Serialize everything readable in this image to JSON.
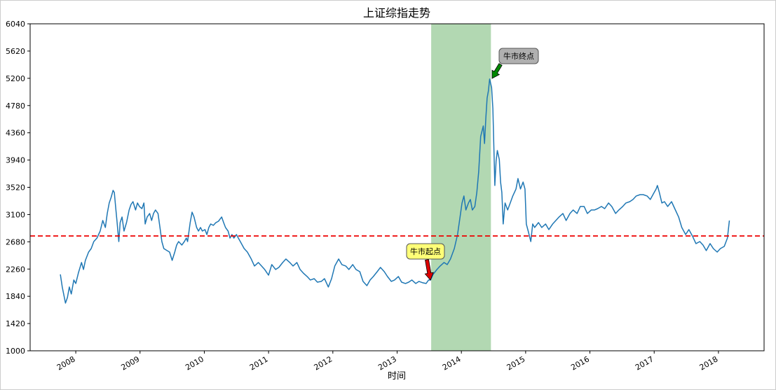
{
  "chart_data": {
    "type": "line",
    "title": "上证综指走势",
    "x_label": "时间",
    "color": "#1f77b4",
    "x": [
      2007.76,
      2007.79,
      2007.84,
      2007.87,
      2007.9,
      2007.93,
      2007.97,
      2008.0,
      2008.04,
      2008.09,
      2008.12,
      2008.15,
      2008.2,
      2008.24,
      2008.28,
      2008.33,
      2008.38,
      2008.42,
      2008.46,
      2008.49,
      2008.52,
      2008.55,
      2008.58,
      2008.6,
      2008.62,
      2008.64,
      2008.67,
      2008.69,
      2008.72,
      2008.75,
      2008.79,
      2008.83,
      2008.86,
      2008.89,
      2008.93,
      2008.96,
      2008.99,
      2009.03,
      2009.06,
      2009.08,
      2009.11,
      2009.15,
      2009.18,
      2009.21,
      2009.24,
      2009.28,
      2009.31,
      2009.34,
      2009.37,
      2009.42,
      2009.46,
      2009.5,
      2009.54,
      2009.57,
      2009.6,
      2009.65,
      2009.69,
      2009.72,
      2009.74,
      2009.78,
      2009.81,
      2009.84,
      2009.88,
      2009.91,
      2009.94,
      2009.97,
      2010.01,
      2010.04,
      2010.07,
      2010.1,
      2010.14,
      2010.18,
      2010.22,
      2010.27,
      2010.3,
      2010.33,
      2010.37,
      2010.4,
      2010.43,
      2010.46,
      2010.5,
      2010.53,
      2010.56,
      2010.62,
      2010.67,
      2010.73,
      2010.78,
      2010.84,
      2010.89,
      2010.94,
      2011.0,
      2011.05,
      2011.11,
      2011.16,
      2011.22,
      2011.27,
      2011.33,
      2011.38,
      2011.44,
      2011.49,
      2011.54,
      2011.6,
      2011.65,
      2011.71,
      2011.76,
      2011.82,
      2011.87,
      2011.93,
      2011.98,
      2012.03,
      2012.09,
      2012.14,
      2012.2,
      2012.25,
      2012.31,
      2012.36,
      2012.42,
      2012.47,
      2012.53,
      2012.58,
      2012.63,
      2012.69,
      2012.74,
      2012.8,
      2012.85,
      2012.91,
      2012.96,
      2013.02,
      2013.07,
      2013.13,
      2013.18,
      2013.23,
      2013.29,
      2013.34,
      2013.4,
      2013.45,
      2013.49,
      2013.52,
      2013.56,
      2013.62,
      2013.67,
      2013.73,
      2013.78,
      2013.83,
      2013.89,
      2013.94,
      2013.98,
      2014.01,
      2014.04,
      2014.07,
      2014.11,
      2014.14,
      2014.17,
      2014.21,
      2014.24,
      2014.27,
      2014.3,
      2014.34,
      2014.36,
      2014.38,
      2014.4,
      2014.42,
      2014.44,
      2014.47,
      2014.49,
      2014.51,
      2014.52,
      2014.54,
      2014.56,
      2014.59,
      2014.61,
      2014.63,
      2014.65,
      2014.68,
      2014.72,
      2014.76,
      2014.8,
      2014.85,
      2014.88,
      2014.92,
      2014.96,
      2014.99,
      2015.01,
      2015.04,
      2015.08,
      2015.11,
      2015.14,
      2015.2,
      2015.25,
      2015.31,
      2015.36,
      2015.42,
      2015.47,
      2015.52,
      2015.58,
      2015.63,
      2015.69,
      2015.74,
      2015.8,
      2015.85,
      2015.91,
      2015.96,
      2016.02,
      2016.07,
      2016.12,
      2016.18,
      2016.23,
      2016.29,
      2016.34,
      2016.4,
      2016.45,
      2016.51,
      2016.56,
      2016.62,
      2016.67,
      2016.72,
      2016.78,
      2016.83,
      2016.89,
      2016.94,
      2017.0,
      2017.03,
      2017.05,
      2017.08,
      2017.12,
      2017.16,
      2017.21,
      2017.27,
      2017.32,
      2017.38,
      2017.43,
      2017.49,
      2017.54,
      2017.6,
      2017.65,
      2017.71,
      2017.76,
      2017.81,
      2017.87,
      2017.92,
      2017.98,
      2018.03,
      2018.09,
      2018.14,
      2018.17
    ],
    "values": [
      2177,
      1983,
      1735,
      1821,
      1983,
      1875,
      2091,
      2037,
      2199,
      2361,
      2253,
      2393,
      2522,
      2576,
      2684,
      2738,
      2846,
      3008,
      2900,
      3116,
      3278,
      3364,
      3472,
      3440,
      3224,
      3008,
      2684,
      2976,
      3062,
      2846,
      2976,
      3170,
      3256,
      3299,
      3170,
      3278,
      3224,
      3191,
      3278,
      2954,
      3062,
      3116,
      3008,
      3116,
      3170,
      3116,
      2900,
      2684,
      2576,
      2544,
      2522,
      2393,
      2522,
      2630,
      2684,
      2630,
      2684,
      2738,
      2684,
      2976,
      3137,
      3062,
      2900,
      2846,
      2900,
      2846,
      2868,
      2792,
      2900,
      2954,
      2933,
      2976,
      2997,
      3062,
      2976,
      2900,
      2846,
      2738,
      2792,
      2738,
      2792,
      2738,
      2684,
      2576,
      2522,
      2415,
      2307,
      2361,
      2307,
      2253,
      2166,
      2328,
      2253,
      2285,
      2361,
      2415,
      2361,
      2307,
      2361,
      2253,
      2199,
      2145,
      2091,
      2112,
      2058,
      2069,
      2112,
      1983,
      2112,
      2307,
      2415,
      2328,
      2307,
      2253,
      2328,
      2253,
      2220,
      2069,
      2004,
      2091,
      2145,
      2220,
      2285,
      2220,
      2145,
      2069,
      2091,
      2145,
      2058,
      2037,
      2058,
      2091,
      2037,
      2069,
      2048,
      2037,
      2091,
      2091,
      2177,
      2253,
      2307,
      2361,
      2328,
      2415,
      2576,
      2792,
      3062,
      3278,
      3386,
      3170,
      3278,
      3332,
      3170,
      3224,
      3440,
      3763,
      4303,
      4465,
      4195,
      4573,
      4896,
      5004,
      5188,
      5058,
      4734,
      3979,
      3548,
      3925,
      4087,
      3947,
      3601,
      3440,
      2954,
      3278,
      3170,
      3278,
      3386,
      3494,
      3655,
      3494,
      3601,
      3494,
      2954,
      2846,
      2684,
      2954,
      2900,
      2976,
      2900,
      2954,
      2868,
      2954,
      3008,
      3062,
      3116,
      3008,
      3116,
      3170,
      3116,
      3224,
      3224,
      3116,
      3170,
      3170,
      3191,
      3224,
      3191,
      3278,
      3224,
      3116,
      3170,
      3224,
      3278,
      3299,
      3332,
      3386,
      3407,
      3407,
      3386,
      3332,
      3440,
      3494,
      3548,
      3440,
      3278,
      3299,
      3224,
      3299,
      3191,
      3062,
      2900,
      2792,
      2868,
      2760,
      2652,
      2684,
      2630,
      2544,
      2652,
      2576,
      2522,
      2576,
      2609,
      2738,
      3008
    ],
    "xlim": [
      2007.29,
      2018.71
    ],
    "xticks": [
      2008,
      2009,
      2010,
      2011,
      2012,
      2013,
      2014,
      2015,
      2016,
      2017,
      2018
    ],
    "ylim": [
      1000,
      6040
    ],
    "yticks": [
      1000,
      1420,
      1840,
      2260,
      2680,
      3100,
      3520,
      3940,
      4360,
      4780,
      5200,
      5620,
      6040
    ],
    "hline": 2770,
    "highlight_xlim": [
      2013.53,
      2014.46
    ],
    "annotations": [
      {
        "text": "牛市起点"
      },
      {
        "text": "牛市终点"
      }
    ]
  }
}
